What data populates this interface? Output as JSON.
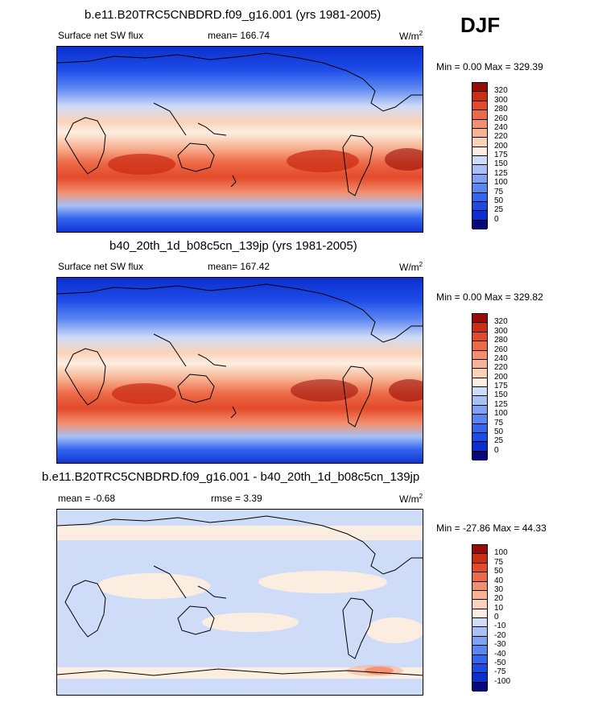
{
  "season": "DJF",
  "units_label": "W/m",
  "units_sup": "2",
  "colors": {
    "model": [
      "#08087a",
      "#0d2fcf",
      "#1c4be8",
      "#3365ef",
      "#5a86f2",
      "#7fa3f4",
      "#a7c1f6",
      "#cfdcf7",
      "#fbeee1",
      "#f9d2b8",
      "#f7b393",
      "#f48f6d",
      "#ed6a48",
      "#e24a2a",
      "#cb2e14",
      "#990b06"
    ],
    "diff": [
      "#08087a",
      "#0d2fcf",
      "#1c4be8",
      "#3365ef",
      "#5a86f2",
      "#7fa3f4",
      "#a7c1f6",
      "#cfdcf7",
      "#fbeee1",
      "#f9d2b8",
      "#f7b393",
      "#f48f6d",
      "#ed6a48",
      "#e24a2a",
      "#cb2e14",
      "#990b06"
    ]
  },
  "panels": [
    {
      "title": "b.e11.B20TRC5CNBDRD.f09_g16.001 (yrs 1981-2005)",
      "left_label": "Surface net SW flux",
      "mid_label": "mean= 166.74",
      "minmax": "Min =   0.00 Max = 329.39",
      "levels": [
        "320",
        "300",
        "280",
        "260",
        "240",
        "220",
        "200",
        "175",
        "150",
        "125",
        "100",
        "75",
        "50",
        "25",
        "0"
      ]
    },
    {
      "title": "b40_20th_1d_b08c5cn_139jp (yrs 1981-2005)",
      "left_label": "Surface net SW flux",
      "mid_label": "mean= 167.42",
      "minmax": "Min =   0.00 Max = 329.82",
      "levels": [
        "320",
        "300",
        "280",
        "260",
        "240",
        "220",
        "200",
        "175",
        "150",
        "125",
        "100",
        "75",
        "50",
        "25",
        "0"
      ]
    },
    {
      "title": "b.e11.B20TRC5CNBDRD.f09_g16.001 - b40_20th_1d_b08c5cn_139jp",
      "left_label": "mean =  -0.68",
      "mid_label": "rmse =   3.39",
      "minmax": "Min = -27.86 Max =  44.33",
      "levels": [
        "100",
        "75",
        "50",
        "40",
        "30",
        "20",
        "10",
        "0",
        "-10",
        "-20",
        "-30",
        "-40",
        "-50",
        "-75",
        "-100"
      ]
    }
  ]
}
